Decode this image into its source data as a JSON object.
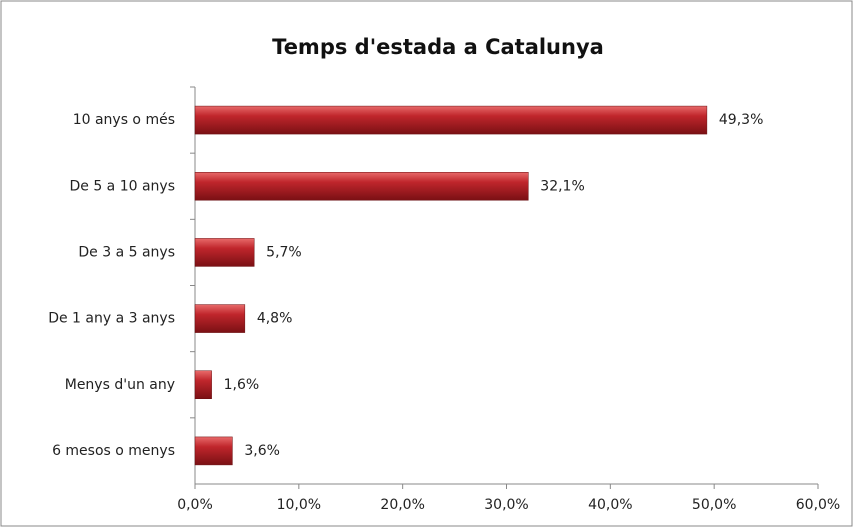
{
  "chart_data": {
    "type": "bar",
    "orientation": "horizontal",
    "title": "Temps d'estada a Catalunya",
    "categories": [
      "10 anys o més",
      "De 5 a 10 anys",
      "De 3 a 5 anys",
      "De 1 any a 3 anys",
      "Menys d'un any",
      "6 mesos o menys"
    ],
    "values": [
      49.3,
      32.1,
      5.7,
      4.8,
      1.6,
      3.6
    ],
    "value_labels": [
      "49,3%",
      "32,1%",
      "5,7%",
      "4,8%",
      "1,6%",
      "3,6%"
    ],
    "color": "#c0262c",
    "xlim": [
      0,
      60
    ],
    "xticks": [
      {
        "value": 0,
        "label": "0,0%"
      },
      {
        "value": 10,
        "label": "10,0%"
      },
      {
        "value": 20,
        "label": "20,0%"
      },
      {
        "value": 30,
        "label": "30,0%"
      },
      {
        "value": 40,
        "label": "40,0%"
      },
      {
        "value": 50,
        "label": "50,0%"
      },
      {
        "value": 60,
        "label": "60,0%"
      }
    ]
  }
}
